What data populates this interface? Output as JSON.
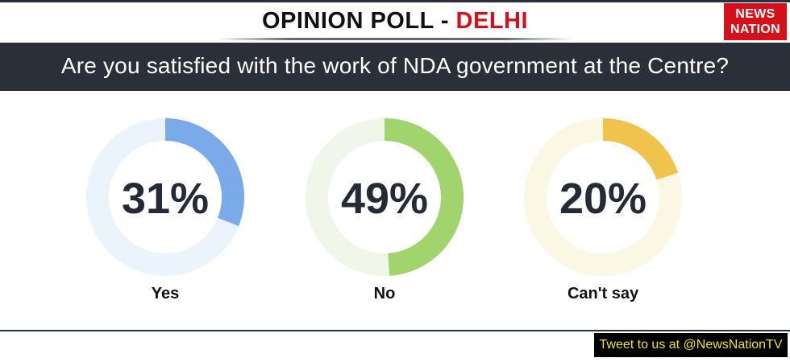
{
  "header": {
    "title_prefix": "OPINION POLL - ",
    "title_place": "DELHI",
    "logo_line1": "NEWS",
    "logo_line2": "NATION"
  },
  "question": "Are you satisfied with the work of NDA government at the Centre?",
  "footer": {
    "tweet": "Tweet to us at @NewsNationTV"
  },
  "chart_data": {
    "type": "pie",
    "series": [
      {
        "label": "Yes",
        "percent": 31,
        "value_label": "31%",
        "color": "#7aaaea",
        "track_color": "#ebf3fc"
      },
      {
        "label": "No",
        "percent": 49,
        "value_label": "49%",
        "color": "#a1d46c",
        "track_color": "#f0f6ea"
      },
      {
        "label": "Can't say",
        "percent": 20,
        "value_label": "20%",
        "color": "#f0c44c",
        "track_color": "#faf7e4"
      }
    ]
  }
}
